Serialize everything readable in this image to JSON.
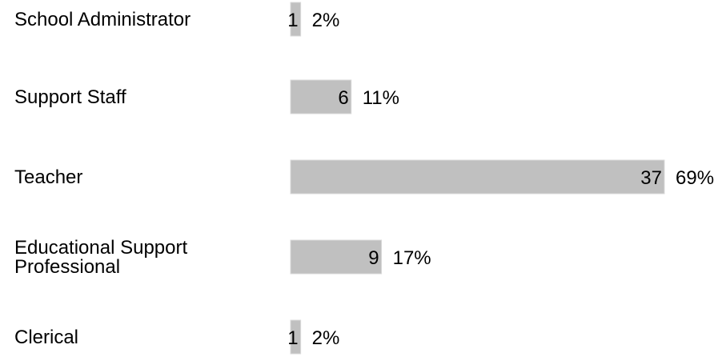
{
  "chart_data": {
    "type": "bar",
    "orientation": "horizontal",
    "categories": [
      "School Administrator",
      "Support Staff",
      "Teacher",
      "Educational Support Professional",
      "Clerical"
    ],
    "category_lines": [
      [
        "School Administrator"
      ],
      [
        "Support Staff"
      ],
      [
        "Teacher"
      ],
      [
        "Educational Support",
        "Professional"
      ],
      [
        "Clerical"
      ]
    ],
    "values": [
      1,
      6,
      37,
      9,
      1
    ],
    "percent_labels": [
      "2%",
      "11%",
      "69%",
      "17%",
      "2%"
    ],
    "xlim": [
      0,
      37
    ],
    "grid": false,
    "legend": "none",
    "bar_color": "#c0c0c0"
  }
}
